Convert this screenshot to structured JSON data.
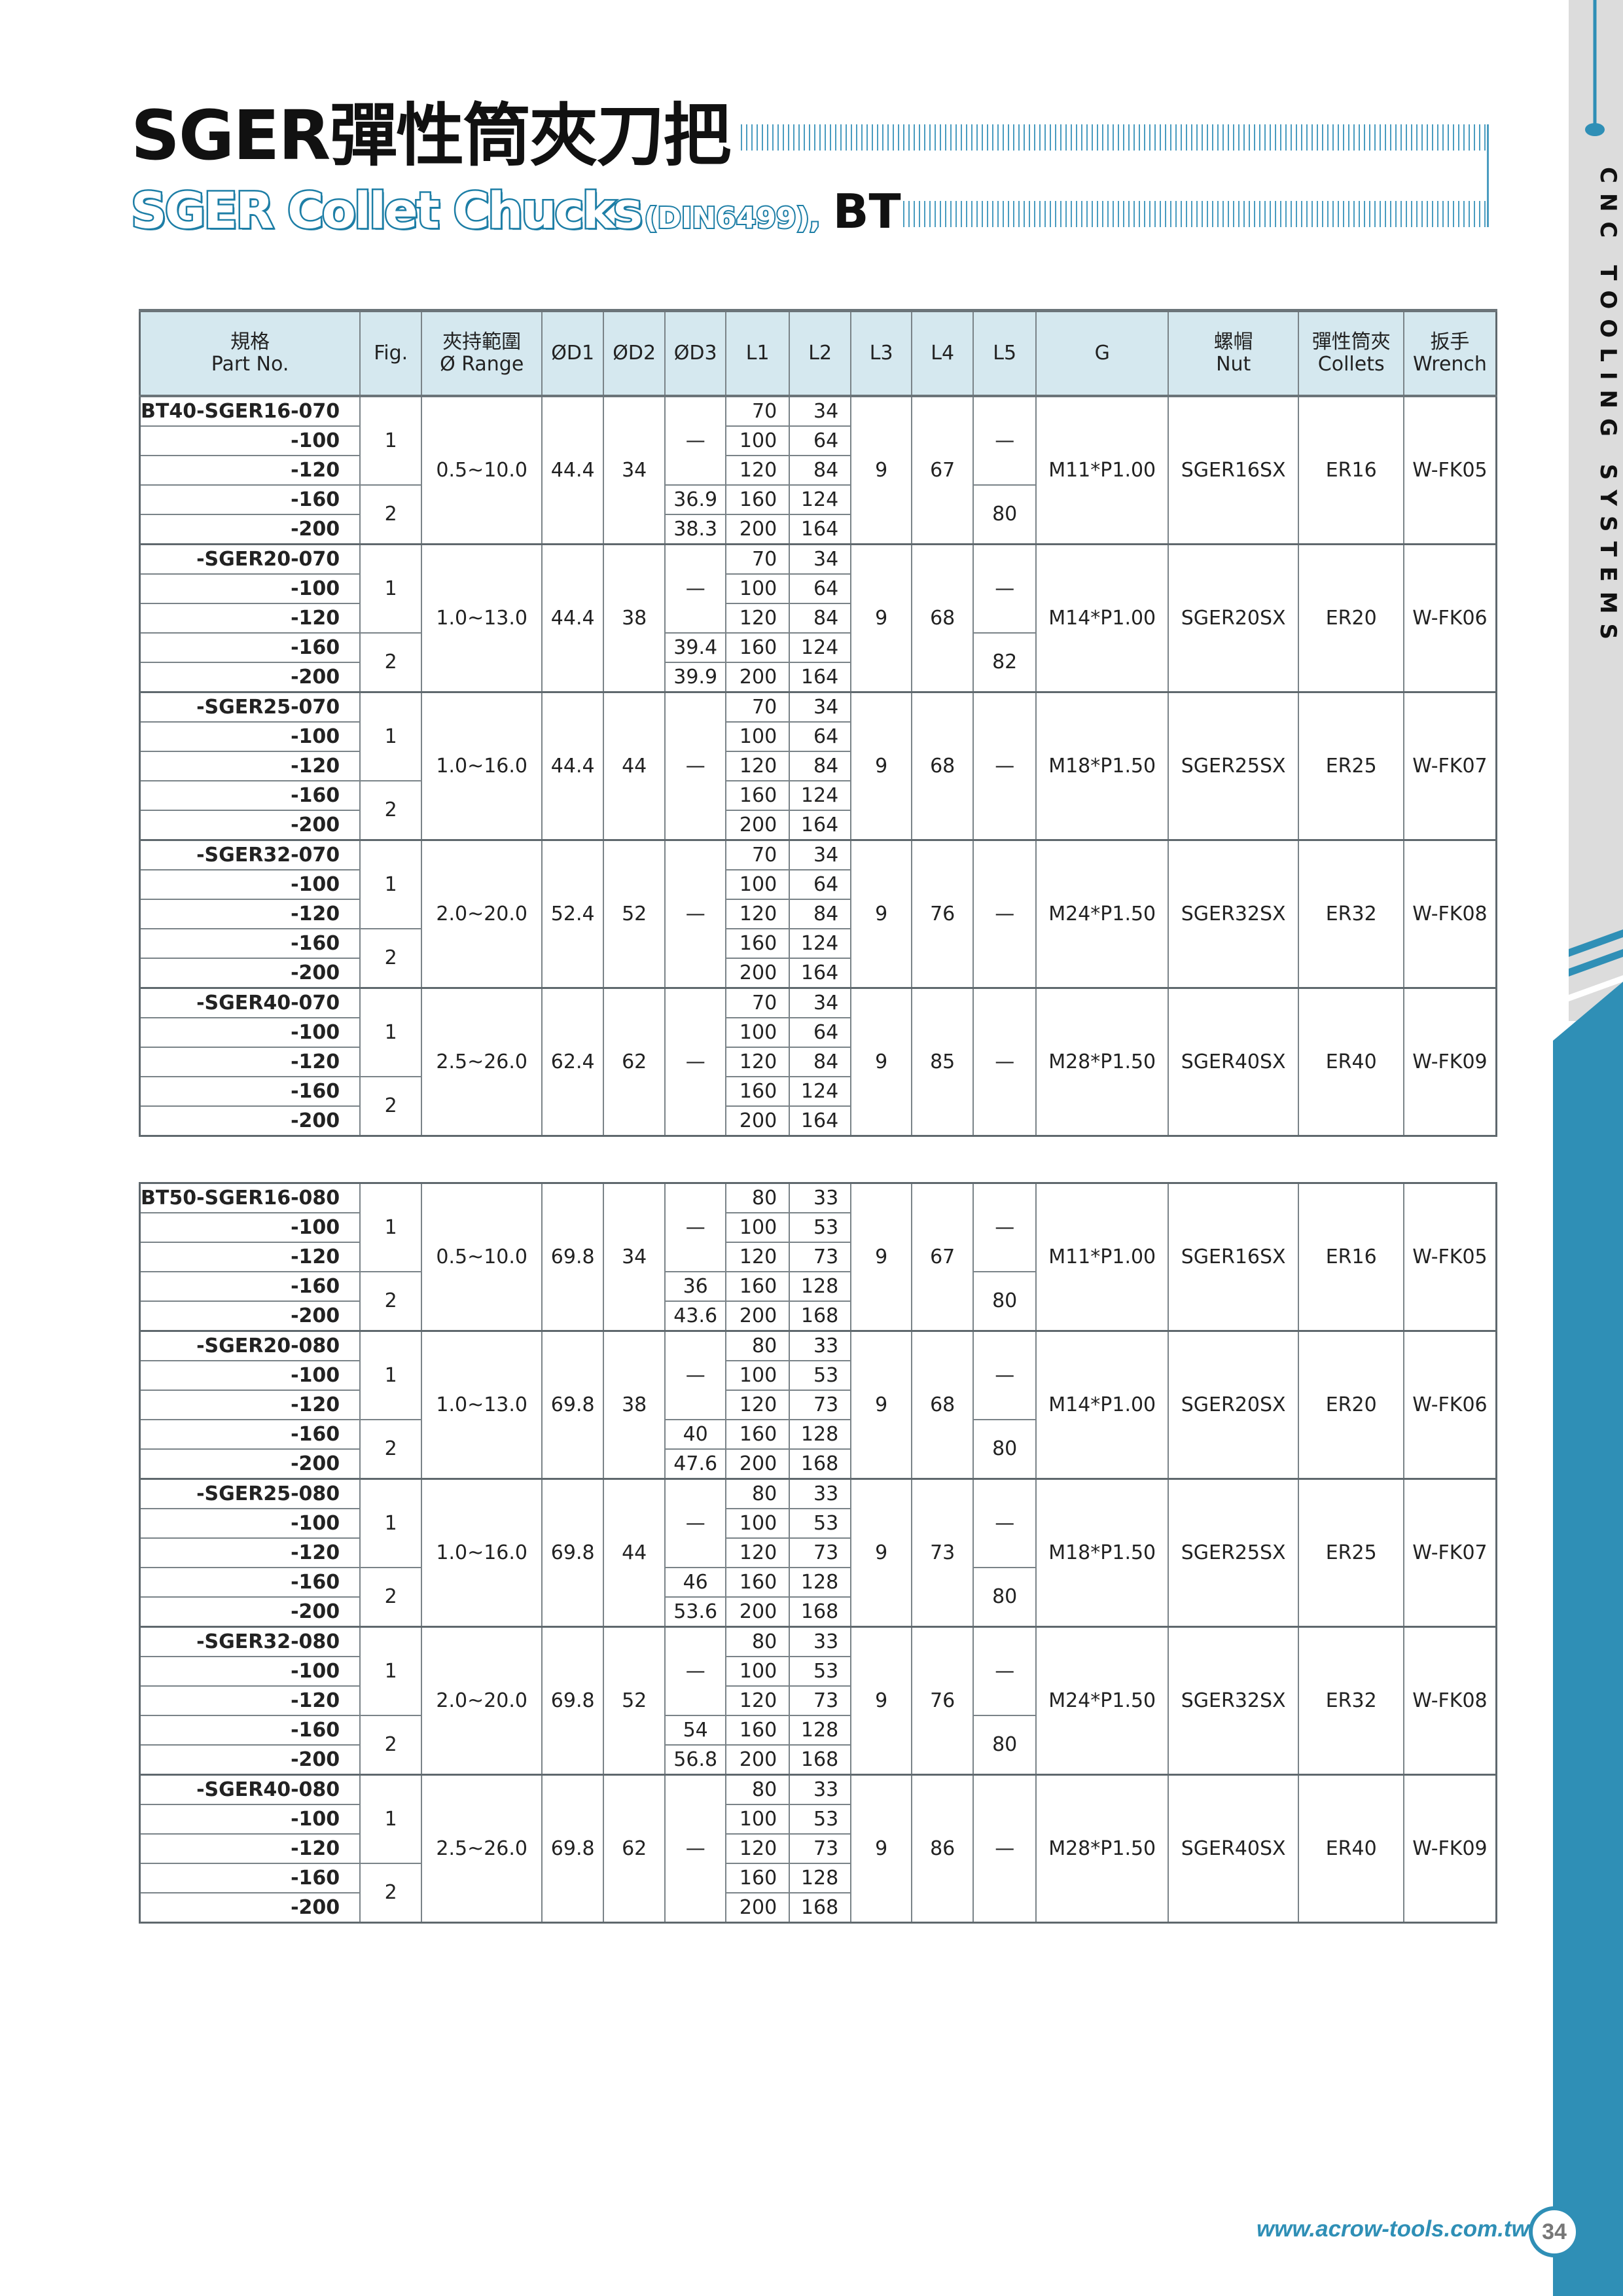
{
  "header": {
    "title": "SGER彈性筒夾刀把",
    "subtitle": "SGER Collet Chucks",
    "subtitle_standard": "(DIN6499),",
    "subtitle_suffix": "BT"
  },
  "sidebar": {
    "text": "CNC TOOLING SYSTEMS"
  },
  "colors": {
    "accent": "#2f8fb6",
    "header_bg": "#d5e8ef",
    "side_gray": "#dcdcdc"
  },
  "table": {
    "columns": [
      {
        "zh": "規格",
        "en": "Part No."
      },
      {
        "zh": "",
        "en": "Fig."
      },
      {
        "zh": "夾持範圍",
        "en": "Ø Range"
      },
      {
        "zh": "",
        "en": "ØD1"
      },
      {
        "zh": "",
        "en": "ØD2"
      },
      {
        "zh": "",
        "en": "ØD3"
      },
      {
        "zh": "",
        "en": "L1"
      },
      {
        "zh": "",
        "en": "L2"
      },
      {
        "zh": "",
        "en": "L3"
      },
      {
        "zh": "",
        "en": "L4"
      },
      {
        "zh": "",
        "en": "L5"
      },
      {
        "zh": "",
        "en": "G"
      },
      {
        "zh": "螺帽",
        "en": "Nut"
      },
      {
        "zh": "彈性筒夾",
        "en": "Collets"
      },
      {
        "zh": "扳手",
        "en": "Wrench"
      }
    ],
    "sections": [
      {
        "groups": [
          {
            "rows": [
              [
                "BT40-SGER16-070",
                "70",
                "34"
              ],
              [
                "-100",
                "100",
                "64"
              ],
              [
                "-120",
                "120",
                "84"
              ],
              [
                "-160",
                "160",
                "124"
              ],
              [
                "-200",
                "200",
                "164"
              ]
            ],
            "fig": [
              "1",
              "2"
            ],
            "range": "0.5~10.0",
            "d1": "44.4",
            "d2": "34",
            "d3": [
              "—",
              "36.9",
              "38.3"
            ],
            "l3": "9",
            "l4": "67",
            "l5": [
              "—",
              "80"
            ],
            "g": "M11*P1.00",
            "nut": "SGER16SX",
            "collet": "ER16",
            "wrench": "W-FK05"
          },
          {
            "rows": [
              [
                "-SGER20-070",
                "70",
                "34"
              ],
              [
                "-100",
                "100",
                "64"
              ],
              [
                "-120",
                "120",
                "84"
              ],
              [
                "-160",
                "160",
                "124"
              ],
              [
                "-200",
                "200",
                "164"
              ]
            ],
            "fig": [
              "1",
              "2"
            ],
            "range": "1.0~13.0",
            "d1": "44.4",
            "d2": "38",
            "d3": [
              "—",
              "39.4",
              "39.9"
            ],
            "l3": "9",
            "l4": "68",
            "l5": [
              "—",
              "82"
            ],
            "g": "M14*P1.00",
            "nut": "SGER20SX",
            "collet": "ER20",
            "wrench": "W-FK06"
          },
          {
            "rows": [
              [
                "-SGER25-070",
                "70",
                "34"
              ],
              [
                "-100",
                "100",
                "64"
              ],
              [
                "-120",
                "120",
                "84"
              ],
              [
                "-160",
                "160",
                "124"
              ],
              [
                "-200",
                "200",
                "164"
              ]
            ],
            "fig": [
              "1",
              "2"
            ],
            "range": "1.0~16.0",
            "d1": "44.4",
            "d2": "44",
            "d3": [
              "—"
            ],
            "l3": "9",
            "l4": "68",
            "l5": [
              "—"
            ],
            "g": "M18*P1.50",
            "nut": "SGER25SX",
            "collet": "ER25",
            "wrench": "W-FK07"
          },
          {
            "rows": [
              [
                "-SGER32-070",
                "70",
                "34"
              ],
              [
                "-100",
                "100",
                "64"
              ],
              [
                "-120",
                "120",
                "84"
              ],
              [
                "-160",
                "160",
                "124"
              ],
              [
                "-200",
                "200",
                "164"
              ]
            ],
            "fig": [
              "1",
              "2"
            ],
            "range": "2.0~20.0",
            "d1": "52.4",
            "d2": "52",
            "d3": [
              "—"
            ],
            "l3": "9",
            "l4": "76",
            "l5": [
              "—"
            ],
            "g": "M24*P1.50",
            "nut": "SGER32SX",
            "collet": "ER32",
            "wrench": "W-FK08"
          },
          {
            "rows": [
              [
                "-SGER40-070",
                "70",
                "34"
              ],
              [
                "-100",
                "100",
                "64"
              ],
              [
                "-120",
                "120",
                "84"
              ],
              [
                "-160",
                "160",
                "124"
              ],
              [
                "-200",
                "200",
                "164"
              ]
            ],
            "fig": [
              "1",
              "2"
            ],
            "range": "2.5~26.0",
            "d1": "62.4",
            "d2": "62",
            "d3": [
              "—"
            ],
            "l3": "9",
            "l4": "85",
            "l5": [
              "—"
            ],
            "g": "M28*P1.50",
            "nut": "SGER40SX",
            "collet": "ER40",
            "wrench": "W-FK09"
          }
        ]
      },
      {
        "groups": [
          {
            "rows": [
              [
                "BT50-SGER16-080",
                "80",
                "33"
              ],
              [
                "-100",
                "100",
                "53"
              ],
              [
                "-120",
                "120",
                "73"
              ],
              [
                "-160",
                "160",
                "128"
              ],
              [
                "-200",
                "200",
                "168"
              ]
            ],
            "fig": [
              "1",
              "2"
            ],
            "range": "0.5~10.0",
            "d1": "69.8",
            "d2": "34",
            "d3": [
              "—",
              "36",
              "43.6"
            ],
            "l3": "9",
            "l4": "67",
            "l5": [
              "—",
              "80"
            ],
            "g": "M11*P1.00",
            "nut": "SGER16SX",
            "collet": "ER16",
            "wrench": "W-FK05"
          },
          {
            "rows": [
              [
                "-SGER20-080",
                "80",
                "33"
              ],
              [
                "-100",
                "100",
                "53"
              ],
              [
                "-120",
                "120",
                "73"
              ],
              [
                "-160",
                "160",
                "128"
              ],
              [
                "-200",
                "200",
                "168"
              ]
            ],
            "fig": [
              "1",
              "2"
            ],
            "range": "1.0~13.0",
            "d1": "69.8",
            "d2": "38",
            "d3": [
              "—",
              "40",
              "47.6"
            ],
            "l3": "9",
            "l4": "68",
            "l5": [
              "—",
              "80"
            ],
            "g": "M14*P1.00",
            "nut": "SGER20SX",
            "collet": "ER20",
            "wrench": "W-FK06"
          },
          {
            "rows": [
              [
                "-SGER25-080",
                "80",
                "33"
              ],
              [
                "-100",
                "100",
                "53"
              ],
              [
                "-120",
                "120",
                "73"
              ],
              [
                "-160",
                "160",
                "128"
              ],
              [
                "-200",
                "200",
                "168"
              ]
            ],
            "fig": [
              "1",
              "2"
            ],
            "range": "1.0~16.0",
            "d1": "69.8",
            "d2": "44",
            "d3": [
              "—",
              "46",
              "53.6"
            ],
            "l3": "9",
            "l4": "73",
            "l5": [
              "—",
              "80"
            ],
            "g": "M18*P1.50",
            "nut": "SGER25SX",
            "collet": "ER25",
            "wrench": "W-FK07"
          },
          {
            "rows": [
              [
                "-SGER32-080",
                "80",
                "33"
              ],
              [
                "-100",
                "100",
                "53"
              ],
              [
                "-120",
                "120",
                "73"
              ],
              [
                "-160",
                "160",
                "128"
              ],
              [
                "-200",
                "200",
                "168"
              ]
            ],
            "fig": [
              "1",
              "2"
            ],
            "range": "2.0~20.0",
            "d1": "69.8",
            "d2": "52",
            "d3": [
              "—",
              "54",
              "56.8"
            ],
            "l3": "9",
            "l4": "76",
            "l5": [
              "—",
              "80"
            ],
            "g": "M24*P1.50",
            "nut": "SGER32SX",
            "collet": "ER32",
            "wrench": "W-FK08"
          },
          {
            "rows": [
              [
                "-SGER40-080",
                "80",
                "33"
              ],
              [
                "-100",
                "100",
                "53"
              ],
              [
                "-120",
                "120",
                "73"
              ],
              [
                "-160",
                "160",
                "128"
              ],
              [
                "-200",
                "200",
                "168"
              ]
            ],
            "fig": [
              "1",
              "2"
            ],
            "range": "2.5~26.0",
            "d1": "69.8",
            "d2": "62",
            "d3": [
              "—"
            ],
            "l3": "9",
            "l4": "86",
            "l5": [
              "—"
            ],
            "g": "M28*P1.50",
            "nut": "SGER40SX",
            "collet": "ER40",
            "wrench": "W-FK09"
          }
        ]
      }
    ]
  },
  "footer": {
    "url": "www.acrow-tools.com.tw",
    "page": "34"
  }
}
